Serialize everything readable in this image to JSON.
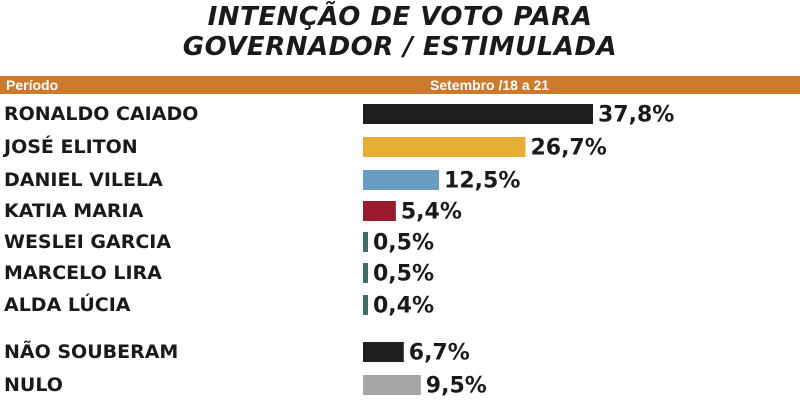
{
  "header": {
    "title_line1": "INTENÇÃO DE VOTO  PARA",
    "title_line2": "GOVERNADOR / ESTIMULADA",
    "period_label": "Período",
    "period_value": "Setembro /18 a 21"
  },
  "chart_data": {
    "type": "bar",
    "orientation": "horizontal",
    "title": "INTENÇÃO DE VOTO  PARA GOVERNADOR / ESTIMULADA",
    "categories": [
      "RONALDO CAIADO",
      "JOSÉ ELITON",
      "DANIEL VILELA",
      "KATIA MARIA",
      "WESLEI GARCIA",
      "MARCELO LIRA",
      "ALDA LÚCIA",
      "NÃO SOUBERAM",
      "NULO"
    ],
    "values": [
      37.8,
      26.7,
      12.5,
      5.4,
      0.5,
      0.5,
      0.4,
      6.7,
      9.5
    ],
    "value_labels": [
      "37,8%",
      "26,7%",
      "12,5%",
      "5,4%",
      "0,5%",
      "0,5%",
      "0,4%",
      "6,7%",
      "9,5%"
    ],
    "colors": [
      "#1e1e1e",
      "#e8ad35",
      "#6a9dc4",
      "#9a1b2d",
      "#3d6e6c",
      "#3d6e6c",
      "#3d6e6c",
      "#1e1e1e",
      "#a6a6a6"
    ],
    "unit": "%",
    "grid": false,
    "legend": "none"
  }
}
